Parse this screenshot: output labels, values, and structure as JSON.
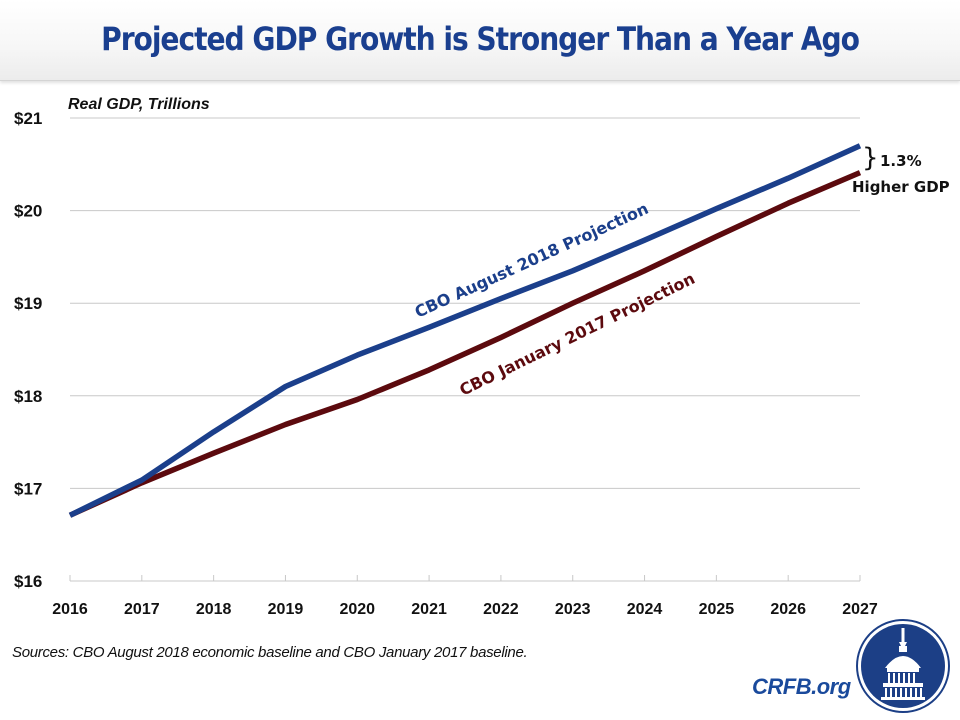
{
  "header": {
    "title": "Projected GDP Growth is Stronger Than a Year Ago"
  },
  "chart_data": {
    "type": "line",
    "title": "Projected GDP Growth is Stronger Than a Year Ago",
    "xlabel": "",
    "ylabel": "Real GDP, Trillions",
    "x": [
      2016,
      2017,
      2018,
      2019,
      2020,
      2021,
      2022,
      2023,
      2024,
      2025,
      2026,
      2027
    ],
    "x_tick_labels": [
      "2016",
      "2017",
      "2018",
      "2019",
      "2020",
      "2021",
      "2022",
      "2023",
      "2024",
      "2025",
      "2026",
      "2027"
    ],
    "ylim": [
      16,
      21
    ],
    "y_ticks": [
      16,
      17,
      18,
      19,
      20,
      21
    ],
    "y_tick_labels": [
      "$16",
      "$17",
      "$18",
      "$19",
      "$20",
      "$21"
    ],
    "grid": true,
    "legend": "inline-labels",
    "series": [
      {
        "name": "CBO August 2018 Projection",
        "color": "#1b3f8b",
        "values": [
          16.71,
          17.09,
          17.61,
          18.1,
          18.44,
          18.74,
          19.05,
          19.35,
          19.68,
          20.02,
          20.35,
          20.7
        ]
      },
      {
        "name": "CBO January 2017 Projection",
        "color": "#5c0a0e",
        "values": [
          16.71,
          17.06,
          17.38,
          17.69,
          17.96,
          18.28,
          18.63,
          19.0,
          19.35,
          19.72,
          20.08,
          20.41
        ]
      }
    ],
    "annotations": [
      {
        "text_line1": "1.3%",
        "text_line2": "Higher GDP",
        "brace": "}"
      }
    ]
  },
  "footer": {
    "source": "Sources: CBO August 2018 economic baseline and CBO January 2017 baseline.",
    "brand": "CRFB.org",
    "logo_icon": "capitol-dome-icon"
  },
  "colors": {
    "title": "#1a3f8f",
    "brand": "#1a4a9c",
    "logo_bg": "#1c3f86",
    "grid": "#c8c8c8"
  }
}
